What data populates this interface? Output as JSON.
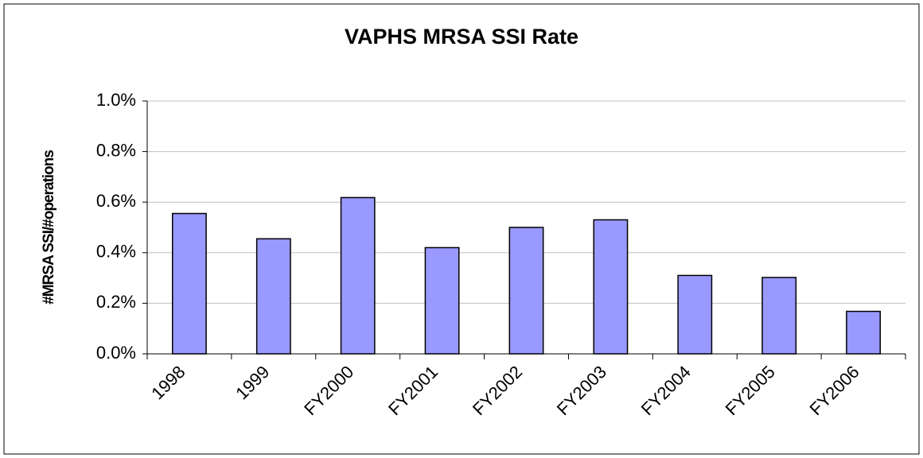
{
  "chart_data": {
    "type": "bar",
    "title": "VAPHS MRSA SSI Rate",
    "y_label": "#MRSA SSI/#operations",
    "categories": [
      "1998",
      "1999",
      "FY2000",
      "FY2001",
      "FY2002",
      "FY2003",
      "FY2004",
      "FY2005",
      "FY2006"
    ],
    "values": [
      0.555,
      0.455,
      0.618,
      0.42,
      0.5,
      0.53,
      0.31,
      0.302,
      0.168
    ],
    "color": "#9999ff",
    "ylim": [
      0,
      1
    ],
    "yticks": [
      {
        "value": 0,
        "label": "0.0%"
      },
      {
        "value": 0.2,
        "label": "0.2%"
      },
      {
        "value": 0.4,
        "label": "0.4%"
      },
      {
        "value": 0.6,
        "label": "0.6%"
      },
      {
        "value": 0.8,
        "label": "0.8%"
      },
      {
        "value": 1,
        "label": "1.0%"
      }
    ],
    "grid": true
  }
}
